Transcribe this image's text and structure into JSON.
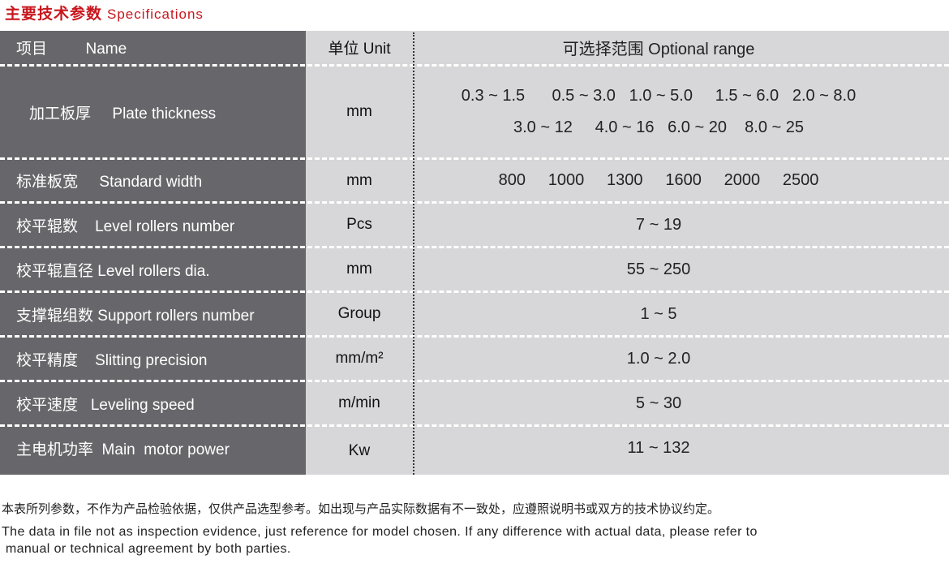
{
  "title": {
    "cn": "主要技术参数",
    "en": "Specifications"
  },
  "header": {
    "name": "项目         Name",
    "unit": "单位 Unit",
    "range": "可选择范围 Optional range"
  },
  "rows": [
    {
      "name": "加工板厚     Plate thickness",
      "unit": "mm",
      "range1": "0.3 ~ 1.5      0.5 ~ 3.0   1.0 ~ 5.0     1.5 ~ 6.0   2.0 ~ 8.0",
      "range2": "3.0 ~ 12     4.0 ~ 16   6.0 ~ 20    8.0 ~ 25"
    },
    {
      "name": "标准板宽     Standard width",
      "unit": "mm",
      "range": "800     1000     1300     1600     2000     2500"
    },
    {
      "name": "校平辊数    Level rollers number",
      "unit": "Pcs",
      "range": "7 ~ 19"
    },
    {
      "name": "校平辊直径 Level rollers dia.",
      "unit": "mm",
      "range": "55 ~ 250"
    },
    {
      "name": "支撑辊组数 Support rollers number",
      "unit": "Group",
      "range": "1 ~ 5"
    },
    {
      "name": "校平精度    Slitting precision",
      "unit": "mm/m²",
      "range": "1.0 ~ 2.0"
    },
    {
      "name": "校平速度   Leveling speed",
      "unit": "m/min",
      "range": "5 ~ 30"
    },
    {
      "name": "主电机功率  Main  motor power",
      "unit": "Kw",
      "range": "11 ~ 132"
    }
  ],
  "notes": {
    "cn": "本表所列参数，不作为产品检验依据，仅供产品选型参考。如出现与产品实际数据有不一致处，应遵照说明书或双方的技术协议约定。",
    "en1": "The data in file not as inspection evidence, just reference for model chosen. If any difference with actual data, please refer to",
    "en2": " manual or technical agreement by both parties."
  }
}
